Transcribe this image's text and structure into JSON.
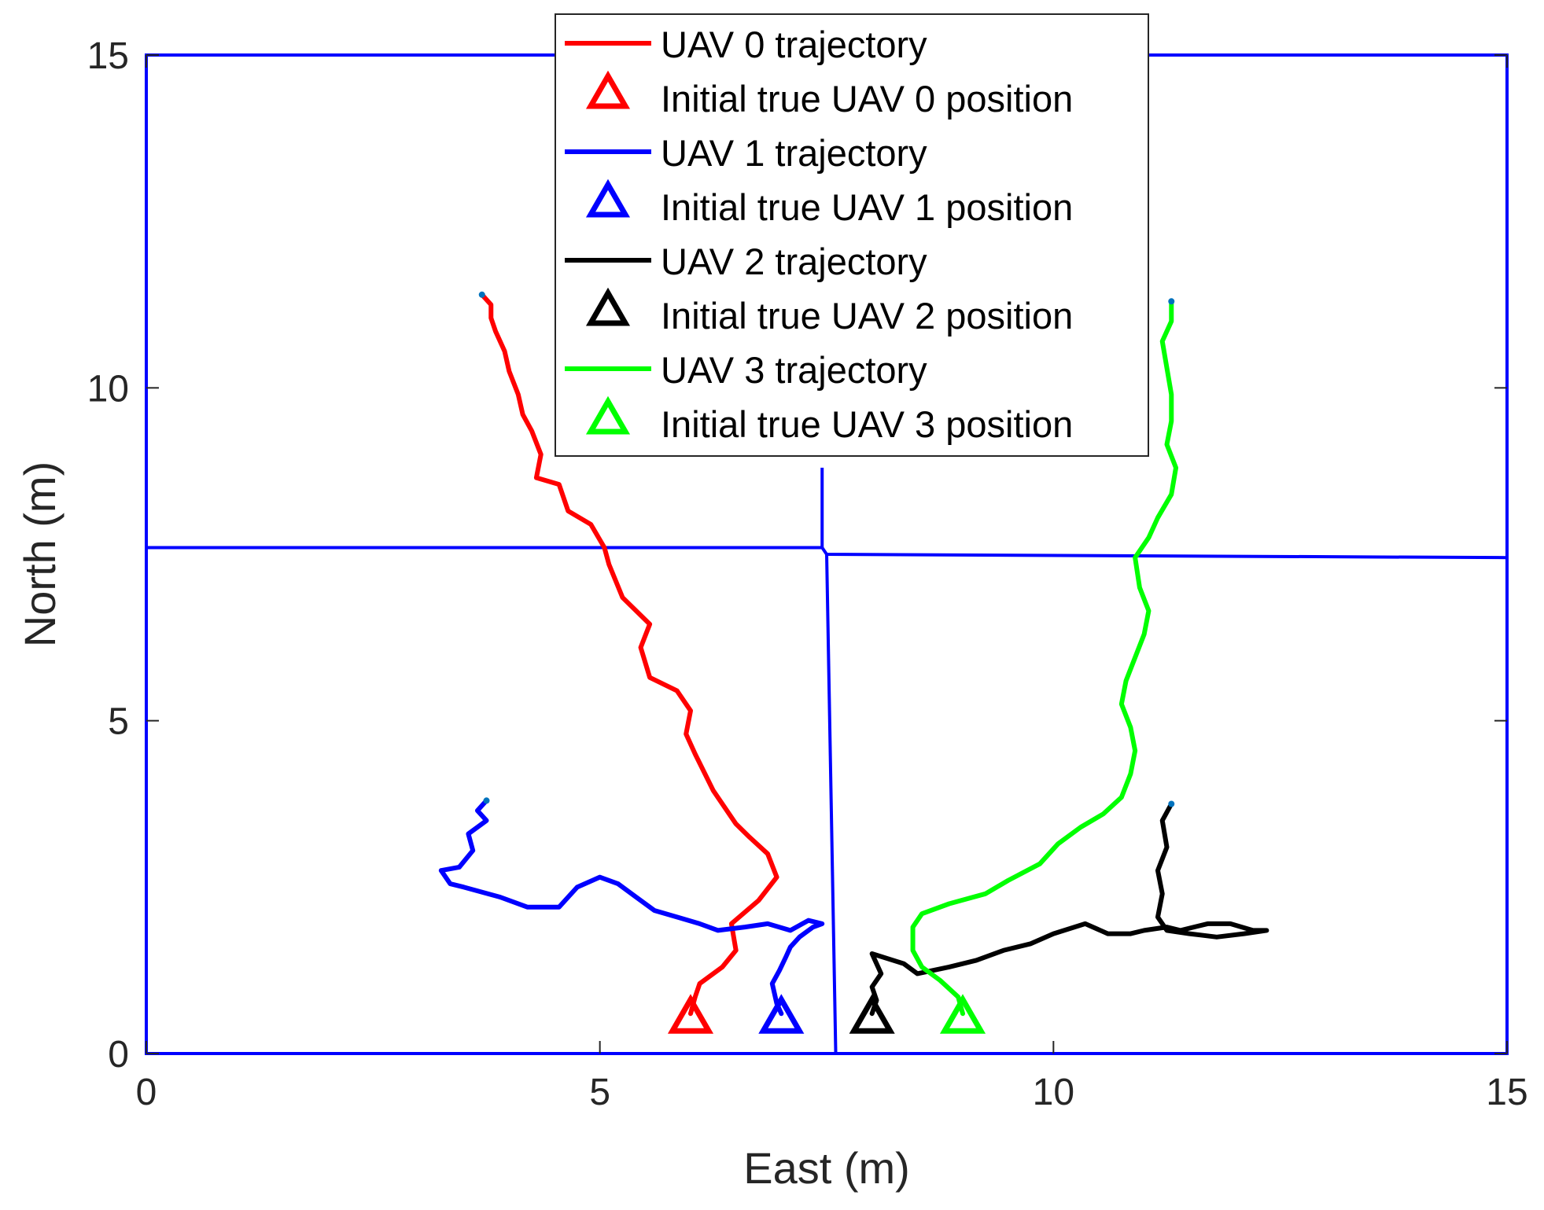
{
  "chart_data": {
    "type": "line",
    "xlabel": "East (m)",
    "ylabel": "North (m)",
    "xlim": [
      0,
      15
    ],
    "ylim": [
      0,
      15
    ],
    "xticks": [
      0,
      5,
      10,
      15
    ],
    "yticks": [
      0,
      5,
      10,
      15
    ],
    "grid": false,
    "legend_position": "top-center",
    "boundary_color": "#0000ff",
    "voronoi_cells": [
      {
        "name": "",
        "points": [
          [
            0,
            7.6
          ],
          [
            7.45,
            7.6
          ],
          [
            7.5,
            7.5
          ],
          [
            15,
            7.45
          ]
        ]
      },
      {
        "name": "",
        "points": [
          [
            7.45,
            7.6
          ],
          [
            7.45,
            8.8
          ]
        ]
      },
      {
        "name": "",
        "points": [
          [
            7.5,
            7.5
          ],
          [
            7.6,
            0
          ]
        ]
      }
    ],
    "series": [
      {
        "name": "UAV 0 trajectory",
        "color": "#ff0000",
        "end_marker": [
          3.7,
          11.4
        ],
        "points": [
          [
            6.0,
            0.6
          ],
          [
            6.05,
            0.85
          ],
          [
            6.1,
            1.05
          ],
          [
            6.35,
            1.3
          ],
          [
            6.5,
            1.55
          ],
          [
            6.45,
            1.95
          ],
          [
            6.75,
            2.3
          ],
          [
            6.95,
            2.65
          ],
          [
            6.85,
            3.0
          ],
          [
            6.65,
            3.25
          ],
          [
            6.5,
            3.45
          ],
          [
            6.25,
            3.95
          ],
          [
            6.05,
            4.5
          ],
          [
            5.95,
            4.8
          ],
          [
            6.0,
            5.15
          ],
          [
            5.85,
            5.45
          ],
          [
            5.55,
            5.65
          ],
          [
            5.45,
            6.1
          ],
          [
            5.55,
            6.45
          ],
          [
            5.25,
            6.85
          ],
          [
            5.1,
            7.35
          ],
          [
            5.05,
            7.6
          ],
          [
            4.9,
            7.95
          ],
          [
            4.65,
            8.15
          ],
          [
            4.55,
            8.55
          ],
          [
            4.3,
            8.65
          ],
          [
            4.35,
            9.0
          ],
          [
            4.25,
            9.35
          ],
          [
            4.15,
            9.6
          ],
          [
            4.1,
            9.9
          ],
          [
            4.0,
            10.25
          ],
          [
            3.95,
            10.55
          ],
          [
            3.85,
            10.85
          ],
          [
            3.8,
            11.05
          ],
          [
            3.8,
            11.25
          ],
          [
            3.7,
            11.4
          ]
        ]
      },
      {
        "name": "UAV 1 trajectory",
        "color": "#0000ff",
        "end_marker": [
          3.75,
          3.8
        ],
        "points": [
          [
            7.0,
            0.6
          ],
          [
            6.95,
            0.75
          ],
          [
            6.9,
            1.05
          ],
          [
            6.98,
            1.25
          ],
          [
            7.05,
            1.45
          ],
          [
            7.1,
            1.6
          ],
          [
            7.2,
            1.75
          ],
          [
            7.35,
            1.9
          ],
          [
            7.45,
            1.95
          ],
          [
            7.3,
            2.0
          ],
          [
            7.1,
            1.85
          ],
          [
            6.85,
            1.95
          ],
          [
            6.6,
            1.9
          ],
          [
            6.3,
            1.85
          ],
          [
            6.1,
            1.95
          ],
          [
            5.85,
            2.05
          ],
          [
            5.6,
            2.15
          ],
          [
            5.4,
            2.35
          ],
          [
            5.2,
            2.55
          ],
          [
            5.0,
            2.65
          ],
          [
            4.75,
            2.5
          ],
          [
            4.55,
            2.2
          ],
          [
            4.2,
            2.2
          ],
          [
            3.9,
            2.35
          ],
          [
            3.5,
            2.5
          ],
          [
            3.35,
            2.55
          ],
          [
            3.25,
            2.75
          ],
          [
            3.45,
            2.8
          ],
          [
            3.6,
            3.05
          ],
          [
            3.55,
            3.3
          ],
          [
            3.75,
            3.5
          ],
          [
            3.65,
            3.65
          ],
          [
            3.75,
            3.8
          ]
        ]
      },
      {
        "name": "UAV 2 trajectory",
        "color": "#000000",
        "end_marker": [
          11.3,
          3.75
        ],
        "points": [
          [
            8.0,
            0.6
          ],
          [
            8.05,
            0.8
          ],
          [
            8.0,
            1.0
          ],
          [
            8.1,
            1.2
          ],
          [
            8.0,
            1.5
          ],
          [
            8.35,
            1.35
          ],
          [
            8.5,
            1.2
          ],
          [
            8.85,
            1.3
          ],
          [
            9.15,
            1.4
          ],
          [
            9.45,
            1.55
          ],
          [
            9.75,
            1.65
          ],
          [
            10.0,
            1.8
          ],
          [
            10.35,
            1.95
          ],
          [
            10.6,
            1.8
          ],
          [
            10.85,
            1.8
          ],
          [
            11.0,
            1.85
          ],
          [
            11.25,
            1.9
          ],
          [
            11.4,
            1.85
          ],
          [
            11.7,
            1.95
          ],
          [
            11.95,
            1.95
          ],
          [
            12.2,
            1.85
          ],
          [
            12.35,
            1.85
          ],
          [
            12.1,
            1.8
          ],
          [
            11.8,
            1.75
          ],
          [
            11.5,
            1.8
          ],
          [
            11.25,
            1.85
          ],
          [
            11.15,
            2.05
          ],
          [
            11.2,
            2.4
          ],
          [
            11.15,
            2.75
          ],
          [
            11.25,
            3.1
          ],
          [
            11.2,
            3.5
          ],
          [
            11.3,
            3.75
          ]
        ]
      },
      {
        "name": "UAV 3 trajectory",
        "color": "#00ff00",
        "end_marker": [
          11.3,
          11.3
        ],
        "points": [
          [
            9.0,
            0.6
          ],
          [
            8.95,
            0.85
          ],
          [
            8.75,
            1.1
          ],
          [
            8.55,
            1.3
          ],
          [
            8.45,
            1.55
          ],
          [
            8.45,
            1.9
          ],
          [
            8.55,
            2.1
          ],
          [
            8.85,
            2.25
          ],
          [
            9.25,
            2.4
          ],
          [
            9.5,
            2.6
          ],
          [
            9.85,
            2.85
          ],
          [
            10.05,
            3.15
          ],
          [
            10.3,
            3.4
          ],
          [
            10.55,
            3.6
          ],
          [
            10.75,
            3.85
          ],
          [
            10.85,
            4.2
          ],
          [
            10.9,
            4.55
          ],
          [
            10.85,
            4.9
          ],
          [
            10.75,
            5.25
          ],
          [
            10.8,
            5.6
          ],
          [
            10.9,
            5.95
          ],
          [
            11.0,
            6.3
          ],
          [
            11.05,
            6.65
          ],
          [
            10.95,
            7.0
          ],
          [
            10.9,
            7.45
          ],
          [
            11.05,
            7.75
          ],
          [
            11.15,
            8.05
          ],
          [
            11.3,
            8.4
          ],
          [
            11.35,
            8.8
          ],
          [
            11.25,
            9.15
          ],
          [
            11.3,
            9.5
          ],
          [
            11.3,
            9.9
          ],
          [
            11.25,
            10.3
          ],
          [
            11.2,
            10.7
          ],
          [
            11.3,
            11.0
          ],
          [
            11.3,
            11.3
          ]
        ]
      }
    ],
    "initial_positions": [
      {
        "name": "Initial true UAV 0 position",
        "color": "#ff0000",
        "x": 6.0,
        "y": 0.5
      },
      {
        "name": "Initial true UAV 1 position",
        "color": "#0000ff",
        "x": 7.0,
        "y": 0.5
      },
      {
        "name": "Initial true UAV 2 position",
        "color": "#000000",
        "x": 8.0,
        "y": 0.5
      },
      {
        "name": "Initial true UAV 3 position",
        "color": "#00ff00",
        "x": 9.0,
        "y": 0.5
      }
    ],
    "end_marker_color": "#0072bd",
    "legend": [
      {
        "label": "UAV 0 trajectory",
        "kind": "line",
        "color": "#ff0000"
      },
      {
        "label": "Initial true UAV 0 position",
        "kind": "triangle",
        "color": "#ff0000"
      },
      {
        "label": "UAV 1 trajectory",
        "kind": "line",
        "color": "#0000ff"
      },
      {
        "label": "Initial true UAV 1 position",
        "kind": "triangle",
        "color": "#0000ff"
      },
      {
        "label": "UAV 2 trajectory",
        "kind": "line",
        "color": "#000000"
      },
      {
        "label": "Initial true UAV 2 position",
        "kind": "triangle",
        "color": "#000000"
      },
      {
        "label": "UAV 3 trajectory",
        "kind": "line",
        "color": "#00ff00"
      },
      {
        "label": "Initial true UAV 3 position",
        "kind": "triangle",
        "color": "#00ff00"
      }
    ]
  }
}
